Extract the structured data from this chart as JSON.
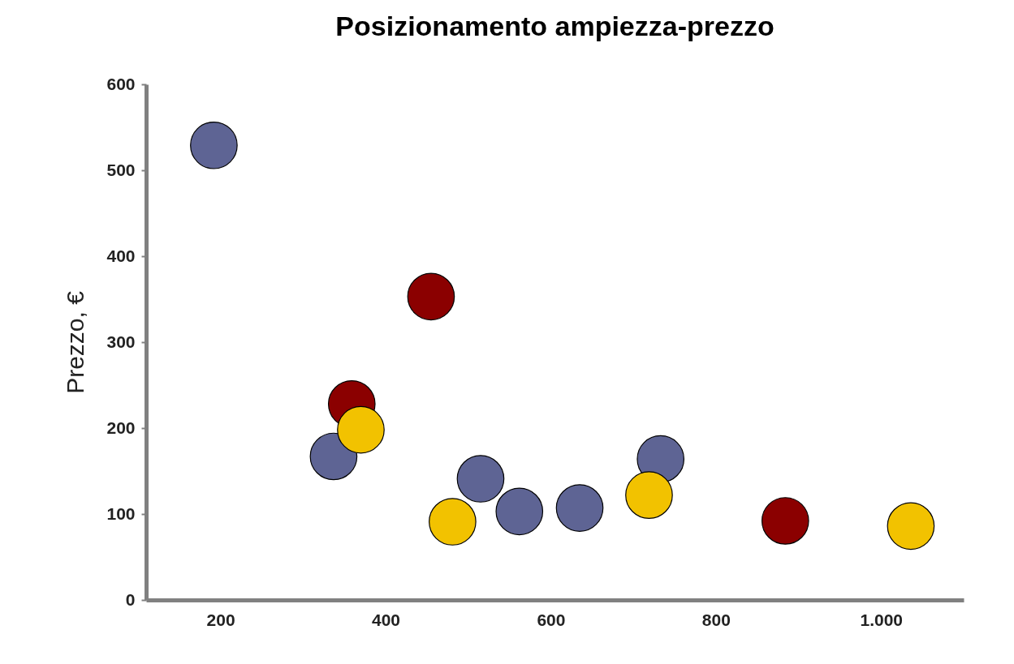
{
  "chart_data": {
    "type": "bubble",
    "title": "Posizionamento ampiezza-prezzo",
    "ylabel": "Prezzo, €",
    "xlim": [
      110,
      1100
    ],
    "xticks": [
      200,
      400,
      600,
      {
        "value": 800,
        "label": "800"
      },
      {
        "value": 1000,
        "label": "1.000"
      }
    ],
    "ylim": [
      0,
      600
    ],
    "yticks": [
      0,
      100,
      200,
      300,
      400,
      500,
      600
    ],
    "grid": false,
    "legend": false,
    "series": [
      {
        "color": "#8b0000",
        "x": [
          359,
          455,
          884
        ],
        "values": [
          228,
          353,
          92
        ],
        "sizes": [
          1,
          1,
          1
        ]
      },
      {
        "color": "#5e6494",
        "x": [
          192,
          337,
          515,
          562,
          635,
          733
        ],
        "values": [
          529,
          167,
          141,
          103,
          107,
          164
        ],
        "sizes": [
          1,
          1,
          1,
          1,
          1,
          1
        ]
      },
      {
        "color": "#f2c200",
        "x": [
          370,
          481,
          719,
          1036
        ],
        "values": [
          198,
          91,
          122,
          86
        ],
        "sizes": [
          1,
          1,
          1,
          1
        ]
      }
    ]
  }
}
